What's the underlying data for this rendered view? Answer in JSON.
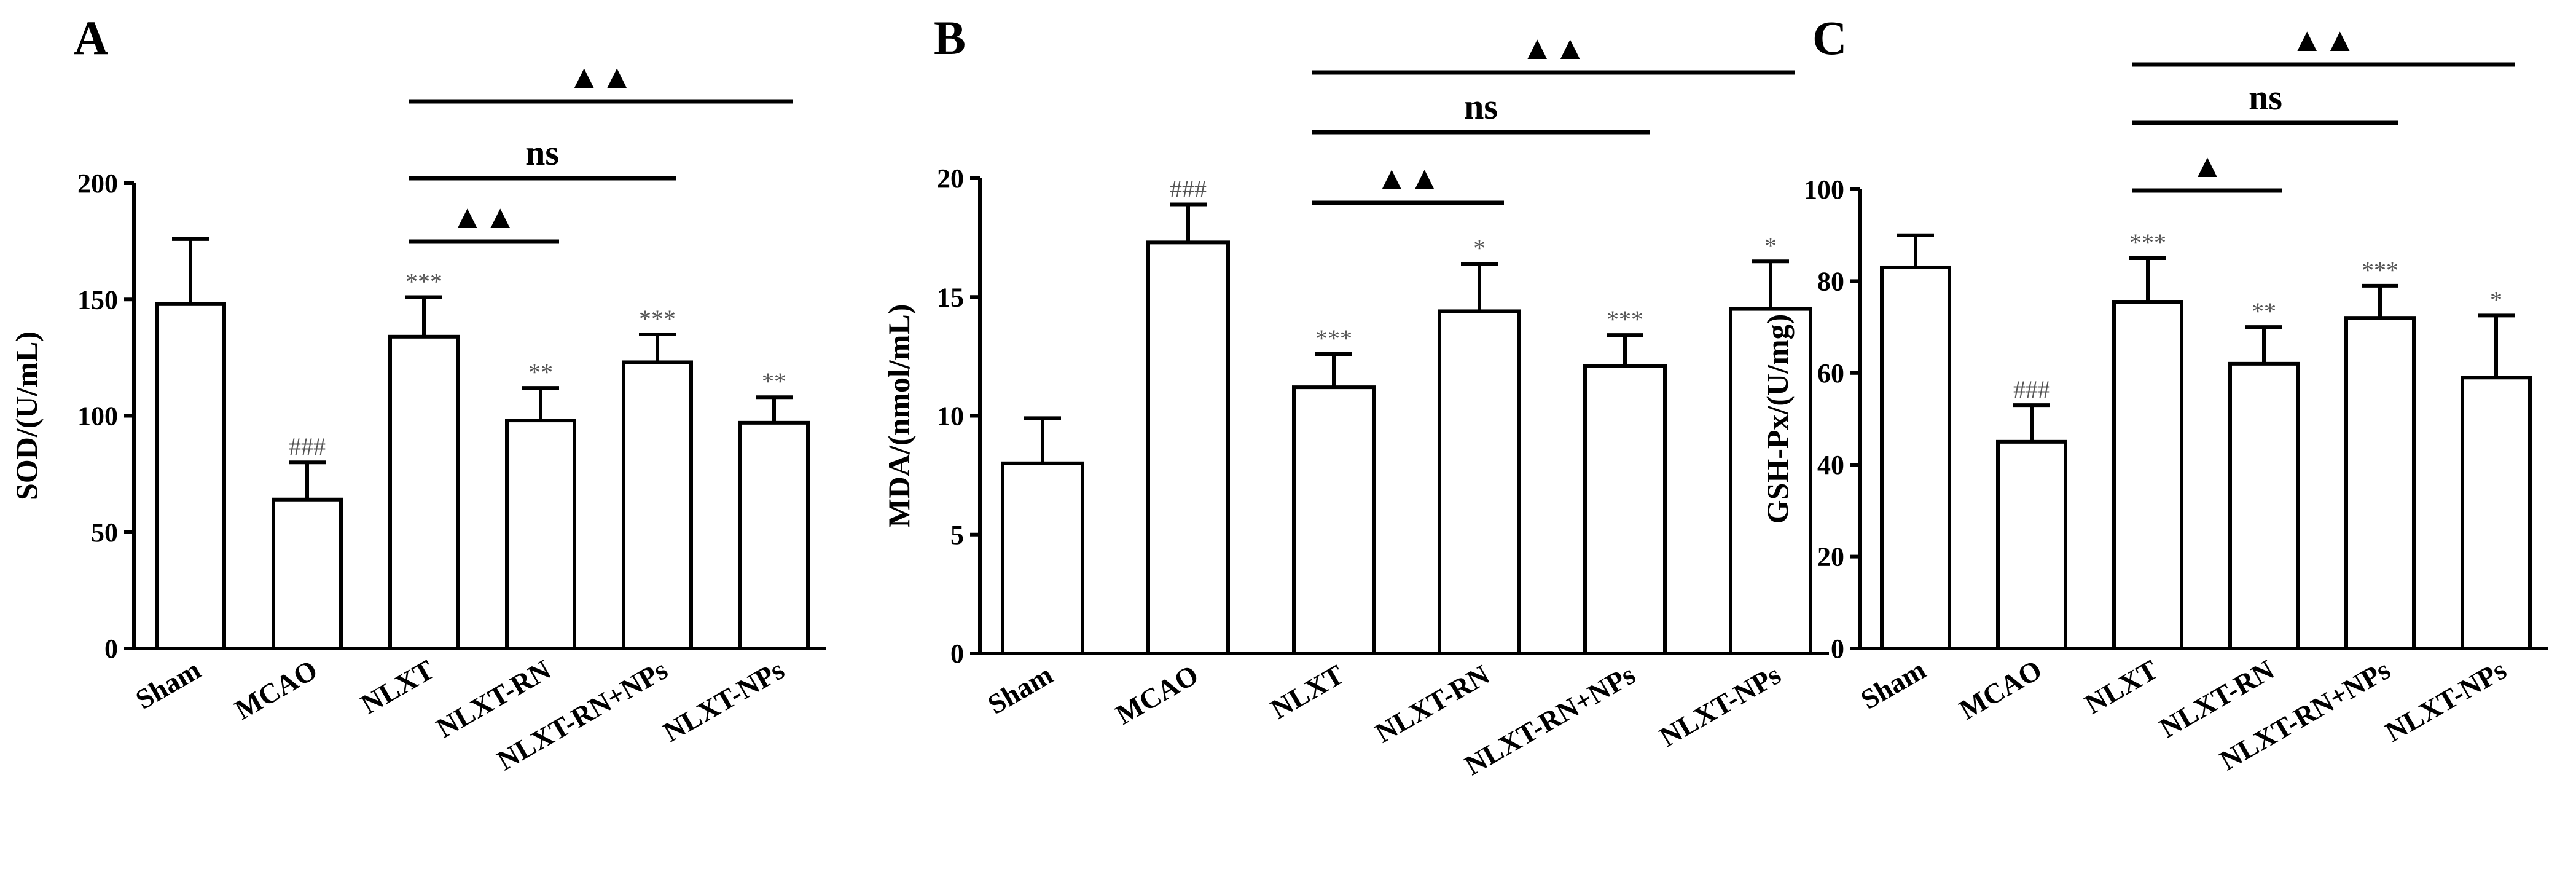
{
  "figure_labels": [
    "A",
    "B",
    "C"
  ],
  "chart_data": [
    {
      "type": "bar",
      "panel": "A",
      "ylabel": "SOD/(U/mL)",
      "ylim": [
        0,
        200
      ],
      "yticks": [
        0,
        50,
        100,
        150,
        200
      ],
      "categories": [
        "Sham",
        "MCAO",
        "NLXT",
        "NLXT-RN",
        "NLXT-RN+NPs",
        "NLXT-NPs"
      ],
      "values": [
        148,
        64,
        134,
        98,
        123,
        97
      ],
      "errors": [
        28,
        16,
        17,
        14,
        12,
        11
      ],
      "labels": [
        "",
        "###",
        "***",
        "**",
        "***",
        "**"
      ],
      "comparisons": [
        {
          "from": 2,
          "to": 3,
          "label": "▲▲"
        },
        {
          "from": 2,
          "to": 4,
          "label": "ns"
        },
        {
          "from": 2,
          "to": 5,
          "label": "▲▲"
        }
      ]
    },
    {
      "type": "bar",
      "panel": "B",
      "ylabel": "MDA/(nmol/mL)",
      "ylim": [
        0,
        20
      ],
      "yticks": [
        0,
        5,
        10,
        15,
        20
      ],
      "categories": [
        "Sham",
        "MCAO",
        "NLXT",
        "NLXT-RN",
        "NLXT-RN+NPs",
        "NLXT-NPs"
      ],
      "values": [
        8,
        17.3,
        11.2,
        14.4,
        12.1,
        14.5
      ],
      "errors": [
        1.9,
        1.6,
        1.4,
        2.0,
        1.3,
        2.0
      ],
      "labels": [
        "",
        "###",
        "***",
        "*",
        "***",
        "*"
      ],
      "comparisons": [
        {
          "from": 2,
          "to": 3,
          "label": "▲▲"
        },
        {
          "from": 2,
          "to": 4,
          "label": "ns"
        },
        {
          "from": 2,
          "to": 5,
          "label": "▲▲"
        }
      ]
    },
    {
      "type": "bar",
      "panel": "C",
      "ylabel": "GSH-Px/(U/mg)",
      "ylim": [
        0,
        100
      ],
      "yticks": [
        0,
        20,
        40,
        60,
        80,
        100
      ],
      "categories": [
        "Sham",
        "MCAO",
        "NLXT",
        "NLXT-RN",
        "NLXT-RN+NPs",
        "NLXT-NPs"
      ],
      "values": [
        83,
        45,
        75.5,
        62,
        72,
        59
      ],
      "errors": [
        7,
        8,
        9.5,
        8,
        7,
        13.5
      ],
      "labels": [
        "",
        "###",
        "***",
        "**",
        "***",
        "*"
      ],
      "comparisons": [
        {
          "from": 2,
          "to": 3,
          "label": "▲"
        },
        {
          "from": 2,
          "to": 4,
          "label": "ns"
        },
        {
          "from": 2,
          "to": 5,
          "label": "▲▲"
        }
      ]
    }
  ]
}
